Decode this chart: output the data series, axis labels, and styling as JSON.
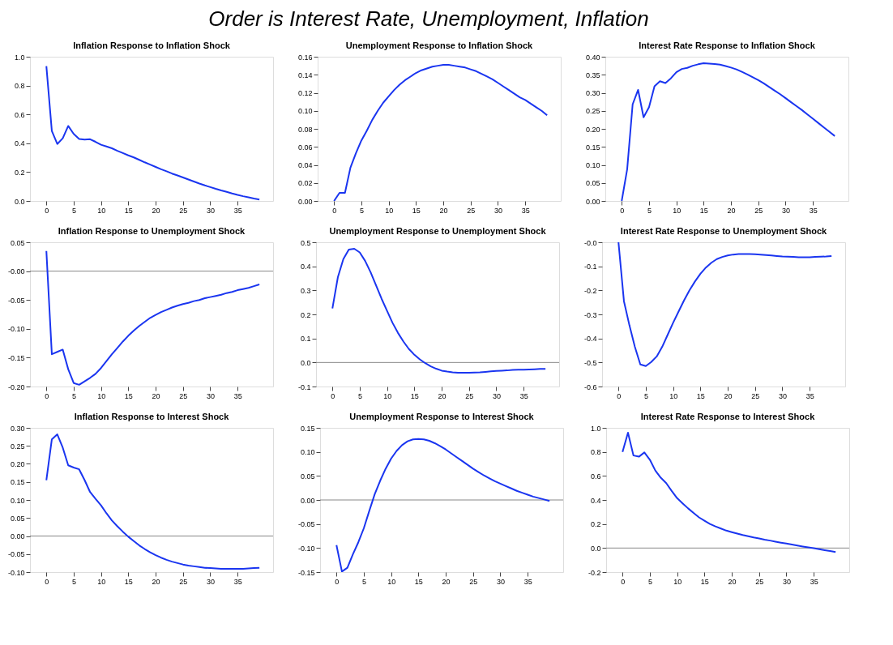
{
  "chart_data": [
    {
      "type": "other",
      "title": "Order is Interest Rate, Unemployment, Inflation"
    },
    {
      "type": "line",
      "title": "Inflation Response to Inflation Shock",
      "grid": false,
      "xlim": [
        -3,
        41.5
      ],
      "xticks": [
        0,
        5,
        10,
        15,
        20,
        25,
        30,
        35
      ],
      "ylim": [
        0,
        1.0
      ],
      "yticks": [
        {
          "value": 0,
          "label": "0.0"
        },
        0.2,
        0.4,
        0.6,
        0.8,
        {
          "value": 1.0,
          "label": "1.0"
        }
      ],
      "x": [
        0,
        1,
        2,
        3,
        4,
        5,
        6,
        7,
        8,
        9,
        10,
        11,
        12,
        13,
        14,
        15,
        16,
        17,
        18,
        19,
        20,
        21,
        22,
        23,
        24,
        25,
        26,
        27,
        28,
        29,
        30,
        31,
        32,
        33,
        34,
        35,
        36,
        37,
        38,
        39
      ],
      "series": [
        {
          "color": "#1a35f0",
          "values": [
            0.935,
            0.485,
            0.395,
            0.435,
            0.52,
            0.465,
            0.43,
            0.425,
            0.428,
            0.41,
            0.39,
            0.378,
            0.365,
            0.348,
            0.332,
            0.316,
            0.302,
            0.285,
            0.268,
            0.252,
            0.236,
            0.22,
            0.206,
            0.19,
            0.177,
            0.163,
            0.149,
            0.135,
            0.121,
            0.108,
            0.096,
            0.084,
            0.073,
            0.063,
            0.052,
            0.042,
            0.033,
            0.025,
            0.017,
            0.01
          ]
        }
      ]
    },
    {
      "type": "line",
      "title": "Unemployment Response to Inflation Shock",
      "grid": false,
      "xlim": [
        -3,
        41.5
      ],
      "xticks": [
        0,
        5,
        10,
        15,
        20,
        25,
        30,
        35
      ],
      "ylim": [
        0,
        0.16
      ],
      "yticks": [
        {
          "value": 0,
          "label": "0.00"
        },
        0.02,
        0.04,
        0.06,
        0.08,
        {
          "value": 0.1,
          "label": "0.10"
        },
        0.12,
        0.14,
        0.16
      ],
      "x": [
        0,
        1,
        2,
        3,
        4,
        5,
        6,
        7,
        8,
        9,
        10,
        11,
        12,
        13,
        14,
        15,
        16,
        17,
        18,
        19,
        20,
        21,
        22,
        23,
        24,
        25,
        26,
        27,
        28,
        29,
        30,
        31,
        32,
        33,
        34,
        35,
        36,
        37,
        38,
        39
      ],
      "series": [
        {
          "color": "#1a35f0",
          "values": [
            0,
            0.009,
            0.009,
            0.037,
            0.053,
            0.067,
            0.078,
            0.09,
            0.1,
            0.109,
            0.116,
            0.123,
            0.129,
            0.134,
            0.138,
            0.142,
            0.145,
            0.147,
            0.149,
            0.15,
            0.151,
            0.151,
            0.15,
            0.149,
            0.148,
            0.146,
            0.144,
            0.141,
            0.138,
            0.135,
            0.131,
            0.127,
            0.123,
            0.119,
            0.115,
            0.112,
            0.108,
            0.104,
            0.1,
            0.095
          ]
        }
      ]
    },
    {
      "type": "line",
      "title": "Interest Rate Response to Inflation Shock",
      "grid": false,
      "xlim": [
        -3,
        41.5
      ],
      "xticks": [
        0,
        5,
        10,
        15,
        20,
        25,
        30,
        35
      ],
      "ylim": [
        0,
        0.4
      ],
      "yticks": [
        {
          "value": 0,
          "label": "0.00"
        },
        0.05,
        {
          "value": 0.1,
          "label": "0.10"
        },
        0.15,
        {
          "value": 0.2,
          "label": "0.20"
        },
        0.25,
        {
          "value": 0.3,
          "label": "0.30"
        },
        0.35,
        {
          "value": 0.4,
          "label": "0.40"
        }
      ],
      "x": [
        0,
        1,
        2,
        3,
        4,
        5,
        6,
        7,
        8,
        9,
        10,
        11,
        12,
        13,
        14,
        15,
        16,
        17,
        18,
        19,
        20,
        21,
        22,
        23,
        24,
        25,
        26,
        27,
        28,
        29,
        30,
        31,
        32,
        33,
        34,
        35,
        36,
        37,
        38,
        39
      ],
      "series": [
        {
          "color": "#1a35f0",
          "values": [
            0,
            0.088,
            0.268,
            0.308,
            0.232,
            0.26,
            0.318,
            0.332,
            0.327,
            0.34,
            0.357,
            0.366,
            0.369,
            0.375,
            0.379,
            0.382,
            0.381,
            0.38,
            0.378,
            0.374,
            0.37,
            0.365,
            0.358,
            0.351,
            0.343,
            0.335,
            0.326,
            0.316,
            0.306,
            0.296,
            0.285,
            0.274,
            0.263,
            0.252,
            0.24,
            0.228,
            0.216,
            0.204,
            0.192,
            0.18
          ]
        }
      ]
    },
    {
      "type": "line",
      "title": "Inflation Response to Unemployment Shock",
      "grid": false,
      "xlim": [
        -3,
        41.5
      ],
      "xticks": [
        0,
        5,
        10,
        15,
        20,
        25,
        30,
        35
      ],
      "ylim": [
        -0.2,
        0.05
      ],
      "yticks": [
        {
          "value": -0.2,
          "label": "-0.20"
        },
        -0.15,
        {
          "value": -0.1,
          "label": "-0.10"
        },
        -0.05,
        {
          "value": 0,
          "label": "-0.00"
        },
        0.05
      ],
      "ref_lines": [
        {
          "axis": "y",
          "value": 0,
          "color": "#888888"
        }
      ],
      "x": [
        0,
        1,
        2,
        3,
        4,
        5,
        6,
        7,
        8,
        9,
        10,
        11,
        12,
        13,
        14,
        15,
        16,
        17,
        18,
        19,
        20,
        21,
        22,
        23,
        24,
        25,
        26,
        27,
        28,
        29,
        30,
        31,
        32,
        33,
        34,
        35,
        36,
        37,
        38,
        39
      ],
      "series": [
        {
          "color": "#1a35f0",
          "values": [
            0.035,
            -0.144,
            -0.14,
            -0.136,
            -0.17,
            -0.194,
            -0.197,
            -0.191,
            -0.185,
            -0.178,
            -0.168,
            -0.156,
            -0.144,
            -0.133,
            -0.122,
            -0.112,
            -0.103,
            -0.095,
            -0.088,
            -0.081,
            -0.076,
            -0.071,
            -0.067,
            -0.063,
            -0.06,
            -0.057,
            -0.055,
            -0.052,
            -0.05,
            -0.047,
            -0.045,
            -0.043,
            -0.041,
            -0.038,
            -0.036,
            -0.033,
            -0.031,
            -0.029,
            -0.026,
            -0.023
          ]
        }
      ]
    },
    {
      "type": "line",
      "title": "Unemployment Response to Unemployment Shock",
      "grid": false,
      "xlim": [
        -3,
        41.5
      ],
      "xticks": [
        0,
        5,
        10,
        15,
        20,
        25,
        30,
        35
      ],
      "ylim": [
        -0.1,
        0.5
      ],
      "yticks": [
        -0.1,
        {
          "value": 0,
          "label": "0.0"
        },
        0.1,
        0.2,
        0.3,
        0.4,
        0.5
      ],
      "ref_lines": [
        {
          "axis": "y",
          "value": 0,
          "color": "#888888"
        }
      ],
      "x": [
        0,
        1,
        2,
        3,
        4,
        5,
        6,
        7,
        8,
        9,
        10,
        11,
        12,
        13,
        14,
        15,
        16,
        17,
        18,
        19,
        20,
        21,
        22,
        23,
        24,
        25,
        26,
        27,
        28,
        29,
        30,
        31,
        32,
        33,
        34,
        35,
        36,
        37,
        38,
        39
      ],
      "series": [
        {
          "color": "#1a35f0",
          "values": [
            0.225,
            0.355,
            0.43,
            0.47,
            0.473,
            0.458,
            0.422,
            0.375,
            0.32,
            0.265,
            0.215,
            0.165,
            0.123,
            0.087,
            0.056,
            0.032,
            0.013,
            -0.003,
            -0.016,
            -0.026,
            -0.034,
            -0.038,
            -0.041,
            -0.043,
            -0.043,
            -0.043,
            -0.042,
            -0.041,
            -0.039,
            -0.037,
            -0.035,
            -0.034,
            -0.033,
            -0.031,
            -0.03,
            -0.03,
            -0.029,
            -0.028,
            -0.027,
            -0.027
          ]
        }
      ]
    },
    {
      "type": "line",
      "title": "Interest Rate Response to Unemployment Shock",
      "grid": false,
      "xlim": [
        -3,
        41.5
      ],
      "xticks": [
        0,
        5,
        10,
        15,
        20,
        25,
        30,
        35
      ],
      "ylim": [
        -0.6,
        0
      ],
      "yticks": [
        -0.6,
        -0.5,
        -0.4,
        -0.3,
        -0.2,
        -0.1,
        {
          "value": 0,
          "label": "-0.0"
        }
      ],
      "x": [
        0,
        1,
        2,
        3,
        4,
        5,
        6,
        7,
        8,
        9,
        10,
        11,
        12,
        13,
        14,
        15,
        16,
        17,
        18,
        19,
        20,
        21,
        22,
        23,
        24,
        25,
        26,
        27,
        28,
        29,
        30,
        31,
        32,
        33,
        34,
        35,
        36,
        37,
        38,
        39
      ],
      "series": [
        {
          "color": "#1a35f0",
          "values": [
            0,
            -0.245,
            -0.345,
            -0.435,
            -0.508,
            -0.515,
            -0.498,
            -0.475,
            -0.435,
            -0.385,
            -0.335,
            -0.288,
            -0.242,
            -0.2,
            -0.163,
            -0.131,
            -0.105,
            -0.085,
            -0.07,
            -0.061,
            -0.055,
            -0.051,
            -0.049,
            -0.049,
            -0.049,
            -0.05,
            -0.051,
            -0.053,
            -0.055,
            -0.057,
            -0.059,
            -0.06,
            -0.061,
            -0.062,
            -0.062,
            -0.062,
            -0.061,
            -0.06,
            -0.059,
            -0.057
          ]
        }
      ]
    },
    {
      "type": "line",
      "title": "Inflation Response to Interest Shock",
      "grid": false,
      "xlim": [
        -3,
        41.5
      ],
      "xticks": [
        0,
        5,
        10,
        15,
        20,
        25,
        30,
        35
      ],
      "ylim": [
        -0.1,
        0.3
      ],
      "yticks": [
        {
          "value": -0.1,
          "label": "-0.10"
        },
        -0.05,
        {
          "value": 0,
          "label": "0.00"
        },
        0.05,
        {
          "value": 0.1,
          "label": "0.10"
        },
        0.15,
        {
          "value": 0.2,
          "label": "0.20"
        },
        0.25,
        {
          "value": 0.3,
          "label": "0.30"
        }
      ],
      "ref_lines": [
        {
          "axis": "y",
          "value": 0,
          "color": "#888888"
        }
      ],
      "x": [
        0,
        1,
        2,
        3,
        4,
        5,
        6,
        7,
        8,
        9,
        10,
        11,
        12,
        13,
        14,
        15,
        16,
        17,
        18,
        19,
        20,
        21,
        22,
        23,
        24,
        25,
        26,
        27,
        28,
        29,
        30,
        31,
        32,
        33,
        34,
        35,
        36,
        37,
        38,
        39
      ],
      "series": [
        {
          "color": "#1a35f0",
          "values": [
            0.155,
            0.268,
            0.282,
            0.245,
            0.196,
            0.19,
            0.185,
            0.155,
            0.122,
            0.103,
            0.085,
            0.063,
            0.043,
            0.027,
            0.012,
            -0.002,
            -0.014,
            -0.026,
            -0.036,
            -0.045,
            -0.053,
            -0.06,
            -0.066,
            -0.071,
            -0.075,
            -0.079,
            -0.082,
            -0.084,
            -0.086,
            -0.088,
            -0.089,
            -0.09,
            -0.091,
            -0.091,
            -0.091,
            -0.091,
            -0.091,
            -0.09,
            -0.089,
            -0.088
          ]
        }
      ]
    },
    {
      "type": "line",
      "title": "Unemployment Response to Interest Shock",
      "grid": false,
      "xlim": [
        -3,
        41.5
      ],
      "xticks": [
        0,
        5,
        10,
        15,
        20,
        25,
        30,
        35
      ],
      "ylim": [
        -0.15,
        0.15
      ],
      "yticks": [
        -0.15,
        {
          "value": -0.1,
          "label": "-0.10"
        },
        -0.05,
        {
          "value": 0,
          "label": "0.00"
        },
        0.05,
        {
          "value": 0.1,
          "label": "0.10"
        },
        0.15
      ],
      "ref_lines": [
        {
          "axis": "y",
          "value": 0,
          "color": "#888888"
        }
      ],
      "x": [
        0,
        1,
        2,
        3,
        4,
        5,
        6,
        7,
        8,
        9,
        10,
        11,
        12,
        13,
        14,
        15,
        16,
        17,
        18,
        19,
        20,
        21,
        22,
        23,
        24,
        25,
        26,
        27,
        28,
        29,
        30,
        31,
        32,
        33,
        34,
        35,
        36,
        37,
        38,
        39
      ],
      "series": [
        {
          "color": "#1a35f0",
          "values": [
            -0.094,
            -0.149,
            -0.141,
            -0.113,
            -0.088,
            -0.059,
            -0.023,
            0.012,
            0.04,
            0.065,
            0.086,
            0.102,
            0.114,
            0.122,
            0.126,
            0.127,
            0.126,
            0.123,
            0.118,
            0.112,
            0.105,
            0.097,
            0.089,
            0.081,
            0.073,
            0.065,
            0.058,
            0.051,
            0.045,
            0.039,
            0.034,
            0.029,
            0.024,
            0.019,
            0.015,
            0.011,
            0.007,
            0.004,
            0.001,
            -0.002
          ]
        }
      ]
    },
    {
      "type": "line",
      "title": "Interest Rate Response to Interest Shock",
      "grid": false,
      "xlim": [
        -3,
        41.5
      ],
      "xticks": [
        0,
        5,
        10,
        15,
        20,
        25,
        30,
        35
      ],
      "ylim": [
        -0.2,
        1.0
      ],
      "yticks": [
        -0.2,
        {
          "value": 0,
          "label": "0.0"
        },
        0.2,
        0.4,
        0.6,
        0.8,
        {
          "value": 1.0,
          "label": "1.0"
        }
      ],
      "ref_lines": [
        {
          "axis": "y",
          "value": 0,
          "color": "#888888"
        }
      ],
      "x": [
        0,
        1,
        2,
        3,
        4,
        5,
        6,
        7,
        8,
        9,
        10,
        11,
        12,
        13,
        14,
        15,
        16,
        17,
        18,
        19,
        20,
        21,
        22,
        23,
        24,
        25,
        26,
        27,
        28,
        29,
        30,
        31,
        32,
        33,
        34,
        35,
        36,
        37,
        38,
        39
      ],
      "series": [
        {
          "color": "#1a35f0",
          "values": [
            0.8,
            0.96,
            0.77,
            0.76,
            0.795,
            0.735,
            0.645,
            0.585,
            0.54,
            0.475,
            0.415,
            0.372,
            0.33,
            0.292,
            0.255,
            0.227,
            0.2,
            0.18,
            0.162,
            0.145,
            0.132,
            0.12,
            0.108,
            0.098,
            0.088,
            0.08,
            0.07,
            0.062,
            0.053,
            0.045,
            0.037,
            0.029,
            0.021,
            0.013,
            0.006,
            -0.001,
            -0.01,
            -0.018,
            -0.025,
            -0.033
          ]
        }
      ]
    }
  ]
}
